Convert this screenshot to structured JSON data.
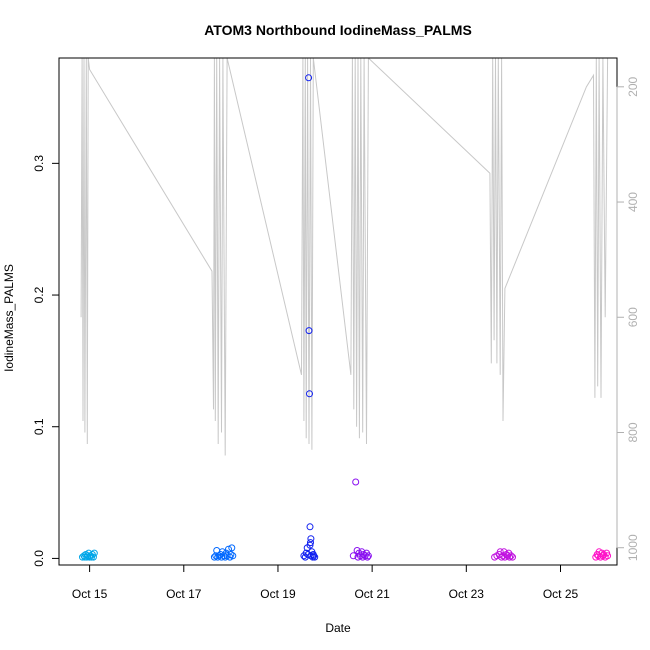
{
  "chart_data": {
    "type": "scatter",
    "title": "ATOM3 Northbound IodineMass_PALMS",
    "xlabel": "Date",
    "ylabel": "IodineMass_PALMS",
    "x_range_days": [
      14.15,
      26.0
    ],
    "y_range": [
      -0.005,
      0.38
    ],
    "x_ticks": [
      {
        "value": 14.8,
        "label": "Oct 15"
      },
      {
        "value": 16.8,
        "label": "Oct 17"
      },
      {
        "value": 18.8,
        "label": "Oct 19"
      },
      {
        "value": 20.8,
        "label": "Oct 21"
      },
      {
        "value": 22.8,
        "label": "Oct 23"
      },
      {
        "value": 24.8,
        "label": "Oct 25"
      }
    ],
    "y_ticks": [
      {
        "value": 0.0,
        "label": "0.0"
      },
      {
        "value": 0.1,
        "label": "0.1"
      },
      {
        "value": 0.2,
        "label": "0.2"
      },
      {
        "value": 0.3,
        "label": "0.3"
      }
    ],
    "y2_range": [
      1030,
      150
    ],
    "y2_ticks": [
      {
        "value": 200,
        "label": "200"
      },
      {
        "value": 400,
        "label": "400"
      },
      {
        "value": 600,
        "label": "600"
      },
      {
        "value": 800,
        "label": "800"
      },
      {
        "value": 1000,
        "label": "1000"
      }
    ],
    "colors": {
      "axis": "#000000",
      "secondary": "#c8c8c8",
      "secondary_text": "#b0b0b0"
    },
    "series": [
      {
        "color": "#00a6e8",
        "x": [
          14.65,
          14.68,
          14.7,
          14.72,
          14.74,
          14.76,
          14.78,
          14.8,
          14.82,
          14.84,
          14.86,
          14.88,
          14.9
        ],
        "y": [
          0.001,
          0.002,
          0.001,
          0.003,
          0.001,
          0.002,
          0.004,
          0.001,
          0.002,
          0.001,
          0.003,
          0.001,
          0.004
        ]
      },
      {
        "color": "#0068ff",
        "x": [
          17.45,
          17.48,
          17.5,
          17.52,
          17.55,
          17.58,
          17.6,
          17.62,
          17.65,
          17.68,
          17.7,
          17.72,
          17.75,
          17.78,
          17.8,
          17.82,
          17.84
        ],
        "y": [
          0.001,
          0.002,
          0.006,
          0.001,
          0.002,
          0.003,
          0.001,
          0.005,
          0.002,
          0.001,
          0.004,
          0.002,
          0.007,
          0.001,
          0.003,
          0.008,
          0.002
        ]
      },
      {
        "color": "#1020f0",
        "x": [
          19.35,
          19.38,
          19.4,
          19.42,
          19.44,
          19.45,
          19.46,
          19.47,
          19.48,
          19.48,
          19.49,
          19.5,
          19.5,
          19.52,
          19.54,
          19.55,
          19.56,
          19.58
        ],
        "y": [
          0.002,
          0.001,
          0.004,
          0.008,
          0.003,
          0.365,
          0.173,
          0.125,
          0.024,
          0.01,
          0.012,
          0.015,
          0.002,
          0.005,
          0.001,
          0.003,
          0.002,
          0.001
        ]
      },
      {
        "color": "#8a10f0",
        "x": [
          20.4,
          20.45,
          20.48,
          20.5,
          20.52,
          20.55,
          20.58,
          20.6,
          20.62,
          20.65,
          20.68,
          20.7,
          20.72
        ],
        "y": [
          0.002,
          0.058,
          0.006,
          0.001,
          0.004,
          0.002,
          0.005,
          0.001,
          0.003,
          0.002,
          0.004,
          0.001,
          0.002
        ]
      },
      {
        "color": "#c010e0",
        "x": [
          23.4,
          23.45,
          23.5,
          23.52,
          23.55,
          23.58,
          23.6,
          23.62,
          23.65,
          23.68,
          23.7,
          23.72,
          23.75,
          23.78
        ],
        "y": [
          0.001,
          0.002,
          0.003,
          0.005,
          0.001,
          0.002,
          0.005,
          0.001,
          0.003,
          0.002,
          0.004,
          0.001,
          0.002,
          0.001
        ]
      },
      {
        "color": "#ff10c8",
        "x": [
          25.55,
          25.58,
          25.6,
          25.62,
          25.65,
          25.68,
          25.7,
          25.72,
          25.75,
          25.78,
          25.8
        ],
        "y": [
          0.001,
          0.003,
          0.002,
          0.005,
          0.001,
          0.004,
          0.002,
          0.003,
          0.001,
          0.004,
          0.002
        ]
      }
    ],
    "secondary_line": {
      "color": "#c8c8c8",
      "points": [
        [
          14.62,
          600
        ],
        [
          14.64,
          150
        ],
        [
          14.66,
          780
        ],
        [
          14.68,
          150
        ],
        [
          14.7,
          800
        ],
        [
          14.73,
          150
        ],
        [
          14.75,
          820
        ],
        [
          14.77,
          150
        ],
        [
          14.8,
          170
        ],
        [
          17.4,
          520
        ],
        [
          17.43,
          760
        ],
        [
          17.45,
          150
        ],
        [
          17.47,
          780
        ],
        [
          17.5,
          150
        ],
        [
          17.53,
          820
        ],
        [
          17.56,
          150
        ],
        [
          17.6,
          800
        ],
        [
          17.63,
          150
        ],
        [
          17.68,
          840
        ],
        [
          17.72,
          150
        ],
        [
          19.3,
          700
        ],
        [
          19.33,
          150
        ],
        [
          19.35,
          780
        ],
        [
          19.38,
          150
        ],
        [
          19.4,
          810
        ],
        [
          19.43,
          150
        ],
        [
          19.46,
          820
        ],
        [
          19.49,
          150
        ],
        [
          19.52,
          830
        ],
        [
          19.55,
          150
        ],
        [
          20.35,
          700
        ],
        [
          20.38,
          150
        ],
        [
          20.41,
          760
        ],
        [
          20.44,
          150
        ],
        [
          20.47,
          790
        ],
        [
          20.5,
          150
        ],
        [
          20.53,
          810
        ],
        [
          20.56,
          150
        ],
        [
          20.6,
          800
        ],
        [
          20.63,
          150
        ],
        [
          20.68,
          820
        ],
        [
          20.72,
          150
        ],
        [
          23.3,
          350
        ],
        [
          23.33,
          680
        ],
        [
          23.36,
          150
        ],
        [
          23.39,
          640
        ],
        [
          23.42,
          150
        ],
        [
          23.45,
          680
        ],
        [
          23.48,
          150
        ],
        [
          23.52,
          700
        ],
        [
          23.55,
          150
        ],
        [
          23.58,
          780
        ],
        [
          23.62,
          550
        ],
        [
          25.35,
          200
        ],
        [
          25.5,
          180
        ],
        [
          25.53,
          740
        ],
        [
          25.56,
          150
        ],
        [
          25.59,
          720
        ],
        [
          25.62,
          150
        ],
        [
          25.66,
          740
        ],
        [
          25.7,
          150
        ],
        [
          25.75,
          600
        ],
        [
          25.8,
          150
        ]
      ]
    }
  }
}
